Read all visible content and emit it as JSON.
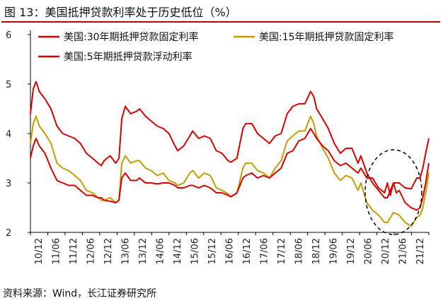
{
  "title": "图  13：美国抵押贷款利率处于历史低位（%）",
  "source": "资料来源：Wind，长江证券研究所",
  "colors": {
    "series_30y": "#d40000",
    "series_15y": "#c39b00",
    "series_5y": "#d40000",
    "accent": "#c00000"
  },
  "chart_data": {
    "type": "line",
    "title": "美国抵押贷款利率处于历史低位（%）",
    "xlabel": "",
    "ylabel": "%",
    "ylim": [
      2,
      6
    ],
    "yticks": [
      "2",
      "3",
      "4",
      "5",
      "6"
    ],
    "x_tick_labels": [
      "10/12",
      "11/06",
      "11/12",
      "12/06",
      "12/12",
      "13/06",
      "13/12",
      "14/06",
      "14/12",
      "15/06",
      "15/12",
      "16/06",
      "16/12",
      "17/06",
      "17/12",
      "18/06",
      "18/12",
      "19/06",
      "19/12",
      "20/06",
      "20/12",
      "21/06",
      "21/12"
    ],
    "x_start": 2010.92,
    "x_end": 2022.17,
    "legend": [
      "美国:30年期抵押贷款固定利率",
      "美国:15年期抵押贷款固定利率",
      "美国:5年期抵押贷款浮动利率"
    ],
    "annotation": "dashed ellipse highlighting 2020-2021 lows",
    "series": [
      {
        "name": "美国:30年期抵押贷款固定利率",
        "color": "#d40000",
        "points": [
          [
            2010.92,
            4.4
          ],
          [
            2011.0,
            4.9
          ],
          [
            2011.08,
            5.05
          ],
          [
            2011.17,
            4.85
          ],
          [
            2011.33,
            4.7
          ],
          [
            2011.5,
            4.5
          ],
          [
            2011.67,
            4.15
          ],
          [
            2011.83,
            4.0
          ],
          [
            2012.0,
            3.95
          ],
          [
            2012.17,
            3.9
          ],
          [
            2012.33,
            3.8
          ],
          [
            2012.5,
            3.6
          ],
          [
            2012.67,
            3.5
          ],
          [
            2012.83,
            3.4
          ],
          [
            2012.92,
            3.35
          ],
          [
            2013.0,
            3.45
          ],
          [
            2013.17,
            3.55
          ],
          [
            2013.33,
            3.4
          ],
          [
            2013.42,
            3.5
          ],
          [
            2013.5,
            4.3
          ],
          [
            2013.6,
            4.55
          ],
          [
            2013.75,
            4.4
          ],
          [
            2013.92,
            4.45
          ],
          [
            2014.0,
            4.5
          ],
          [
            2014.17,
            4.35
          ],
          [
            2014.33,
            4.25
          ],
          [
            2014.5,
            4.15
          ],
          [
            2014.67,
            4.1
          ],
          [
            2014.83,
            4.0
          ],
          [
            2015.0,
            3.75
          ],
          [
            2015.08,
            3.65
          ],
          [
            2015.25,
            3.75
          ],
          [
            2015.42,
            3.95
          ],
          [
            2015.5,
            4.05
          ],
          [
            2015.67,
            3.9
          ],
          [
            2015.83,
            3.95
          ],
          [
            2016.0,
            3.9
          ],
          [
            2016.17,
            3.65
          ],
          [
            2016.33,
            3.6
          ],
          [
            2016.5,
            3.45
          ],
          [
            2016.58,
            3.42
          ],
          [
            2016.75,
            3.5
          ],
          [
            2016.92,
            4.1
          ],
          [
            2017.0,
            4.2
          ],
          [
            2017.17,
            4.2
          ],
          [
            2017.33,
            4.0
          ],
          [
            2017.5,
            3.9
          ],
          [
            2017.67,
            3.8
          ],
          [
            2017.83,
            3.95
          ],
          [
            2018.0,
            4.0
          ],
          [
            2018.17,
            4.4
          ],
          [
            2018.33,
            4.55
          ],
          [
            2018.5,
            4.6
          ],
          [
            2018.67,
            4.6
          ],
          [
            2018.83,
            4.85
          ],
          [
            2018.92,
            4.75
          ],
          [
            2019.0,
            4.5
          ],
          [
            2019.17,
            4.3
          ],
          [
            2019.33,
            4.1
          ],
          [
            2019.5,
            3.8
          ],
          [
            2019.67,
            3.6
          ],
          [
            2019.83,
            3.7
          ],
          [
            2020.0,
            3.7
          ],
          [
            2020.17,
            3.4
          ],
          [
            2020.25,
            3.55
          ],
          [
            2020.42,
            3.2
          ],
          [
            2020.58,
            3.0
          ],
          [
            2020.75,
            2.85
          ],
          [
            2020.92,
            2.7
          ],
          [
            2021.0,
            2.7
          ],
          [
            2021.17,
            3.0
          ],
          [
            2021.33,
            3.0
          ],
          [
            2021.5,
            2.9
          ],
          [
            2021.67,
            2.88
          ],
          [
            2021.83,
            3.1
          ],
          [
            2021.92,
            3.1
          ],
          [
            2022.0,
            3.3
          ],
          [
            2022.08,
            3.6
          ],
          [
            2022.17,
            3.9
          ]
        ]
      },
      {
        "name": "美国:15年期抵押贷款固定利率",
        "color": "#c39b00",
        "points": [
          [
            2010.92,
            3.8
          ],
          [
            2011.0,
            4.2
          ],
          [
            2011.08,
            4.35
          ],
          [
            2011.17,
            4.15
          ],
          [
            2011.33,
            4.0
          ],
          [
            2011.5,
            3.8
          ],
          [
            2011.67,
            3.4
          ],
          [
            2011.83,
            3.3
          ],
          [
            2012.0,
            3.25
          ],
          [
            2012.17,
            3.15
          ],
          [
            2012.33,
            3.05
          ],
          [
            2012.5,
            2.85
          ],
          [
            2012.67,
            2.8
          ],
          [
            2012.83,
            2.7
          ],
          [
            2012.92,
            2.65
          ],
          [
            2013.0,
            2.65
          ],
          [
            2013.17,
            2.7
          ],
          [
            2013.33,
            2.6
          ],
          [
            2013.42,
            2.65
          ],
          [
            2013.5,
            3.4
          ],
          [
            2013.6,
            3.55
          ],
          [
            2013.75,
            3.4
          ],
          [
            2013.92,
            3.45
          ],
          [
            2014.0,
            3.45
          ],
          [
            2014.17,
            3.3
          ],
          [
            2014.33,
            3.25
          ],
          [
            2014.5,
            3.15
          ],
          [
            2014.67,
            3.2
          ],
          [
            2014.83,
            3.05
          ],
          [
            2015.0,
            3.0
          ],
          [
            2015.08,
            2.95
          ],
          [
            2015.25,
            3.0
          ],
          [
            2015.42,
            3.2
          ],
          [
            2015.5,
            3.25
          ],
          [
            2015.67,
            3.1
          ],
          [
            2015.83,
            3.2
          ],
          [
            2016.0,
            3.15
          ],
          [
            2016.17,
            2.9
          ],
          [
            2016.33,
            2.85
          ],
          [
            2016.5,
            2.78
          ],
          [
            2016.58,
            2.72
          ],
          [
            2016.75,
            2.8
          ],
          [
            2016.92,
            3.3
          ],
          [
            2017.0,
            3.4
          ],
          [
            2017.17,
            3.4
          ],
          [
            2017.33,
            3.25
          ],
          [
            2017.5,
            3.2
          ],
          [
            2017.67,
            3.1
          ],
          [
            2017.83,
            3.3
          ],
          [
            2018.0,
            3.45
          ],
          [
            2018.17,
            3.85
          ],
          [
            2018.33,
            3.95
          ],
          [
            2018.5,
            4.05
          ],
          [
            2018.67,
            4.05
          ],
          [
            2018.83,
            4.35
          ],
          [
            2018.92,
            4.2
          ],
          [
            2019.0,
            3.95
          ],
          [
            2019.17,
            3.7
          ],
          [
            2019.33,
            3.5
          ],
          [
            2019.5,
            3.2
          ],
          [
            2019.67,
            3.05
          ],
          [
            2019.83,
            3.15
          ],
          [
            2020.0,
            3.1
          ],
          [
            2020.17,
            2.85
          ],
          [
            2020.25,
            3.0
          ],
          [
            2020.42,
            2.6
          ],
          [
            2020.58,
            2.45
          ],
          [
            2020.75,
            2.35
          ],
          [
            2020.92,
            2.2
          ],
          [
            2021.0,
            2.2
          ],
          [
            2021.17,
            2.4
          ],
          [
            2021.33,
            2.35
          ],
          [
            2021.5,
            2.2
          ],
          [
            2021.67,
            2.12
          ],
          [
            2021.83,
            2.3
          ],
          [
            2021.92,
            2.35
          ],
          [
            2022.0,
            2.5
          ],
          [
            2022.08,
            2.8
          ],
          [
            2022.17,
            3.2
          ]
        ]
      },
      {
        "name": "美国:5年期抵押贷款浮动利率",
        "color": "#d40000",
        "points": [
          [
            2010.92,
            3.5
          ],
          [
            2011.0,
            3.75
          ],
          [
            2011.08,
            3.9
          ],
          [
            2011.17,
            3.75
          ],
          [
            2011.33,
            3.6
          ],
          [
            2011.5,
            3.3
          ],
          [
            2011.67,
            3.05
          ],
          [
            2011.83,
            3.0
          ],
          [
            2012.0,
            2.95
          ],
          [
            2012.17,
            2.95
          ],
          [
            2012.33,
            2.85
          ],
          [
            2012.5,
            2.75
          ],
          [
            2012.67,
            2.75
          ],
          [
            2012.83,
            2.7
          ],
          [
            2012.92,
            2.7
          ],
          [
            2013.0,
            2.65
          ],
          [
            2013.17,
            2.63
          ],
          [
            2013.33,
            2.6
          ],
          [
            2013.42,
            2.65
          ],
          [
            2013.5,
            3.1
          ],
          [
            2013.6,
            3.2
          ],
          [
            2013.75,
            3.05
          ],
          [
            2013.92,
            3.05
          ],
          [
            2014.0,
            3.1
          ],
          [
            2014.17,
            3.0
          ],
          [
            2014.33,
            3.0
          ],
          [
            2014.5,
            2.98
          ],
          [
            2014.67,
            3.0
          ],
          [
            2014.83,
            3.0
          ],
          [
            2015.0,
            2.95
          ],
          [
            2015.08,
            2.9
          ],
          [
            2015.25,
            2.9
          ],
          [
            2015.42,
            2.95
          ],
          [
            2015.5,
            2.95
          ],
          [
            2015.67,
            2.9
          ],
          [
            2015.83,
            2.95
          ],
          [
            2016.0,
            2.9
          ],
          [
            2016.17,
            2.8
          ],
          [
            2016.33,
            2.8
          ],
          [
            2016.5,
            2.75
          ],
          [
            2016.58,
            2.72
          ],
          [
            2016.75,
            2.8
          ],
          [
            2016.92,
            3.1
          ],
          [
            2017.0,
            3.15
          ],
          [
            2017.17,
            3.2
          ],
          [
            2017.33,
            3.1
          ],
          [
            2017.5,
            3.15
          ],
          [
            2017.67,
            3.1
          ],
          [
            2017.83,
            3.2
          ],
          [
            2018.0,
            3.3
          ],
          [
            2018.17,
            3.6
          ],
          [
            2018.33,
            3.65
          ],
          [
            2018.5,
            3.85
          ],
          [
            2018.67,
            3.9
          ],
          [
            2018.83,
            4.1
          ],
          [
            2018.92,
            4.0
          ],
          [
            2019.0,
            3.9
          ],
          [
            2019.17,
            3.75
          ],
          [
            2019.33,
            3.65
          ],
          [
            2019.5,
            3.45
          ],
          [
            2019.67,
            3.35
          ],
          [
            2019.83,
            3.4
          ],
          [
            2020.0,
            3.3
          ],
          [
            2020.17,
            3.2
          ],
          [
            2020.25,
            3.3
          ],
          [
            2020.42,
            3.1
          ],
          [
            2020.58,
            3.1
          ],
          [
            2020.75,
            2.9
          ],
          [
            2020.92,
            2.8
          ],
          [
            2021.0,
            3.0
          ],
          [
            2021.08,
            2.75
          ],
          [
            2021.17,
            3.0
          ],
          [
            2021.25,
            2.8
          ],
          [
            2021.33,
            2.85
          ],
          [
            2021.5,
            2.6
          ],
          [
            2021.67,
            2.5
          ],
          [
            2021.83,
            2.45
          ],
          [
            2021.92,
            2.5
          ],
          [
            2022.0,
            2.7
          ],
          [
            2022.08,
            3.0
          ],
          [
            2022.17,
            3.4
          ]
        ]
      }
    ]
  }
}
